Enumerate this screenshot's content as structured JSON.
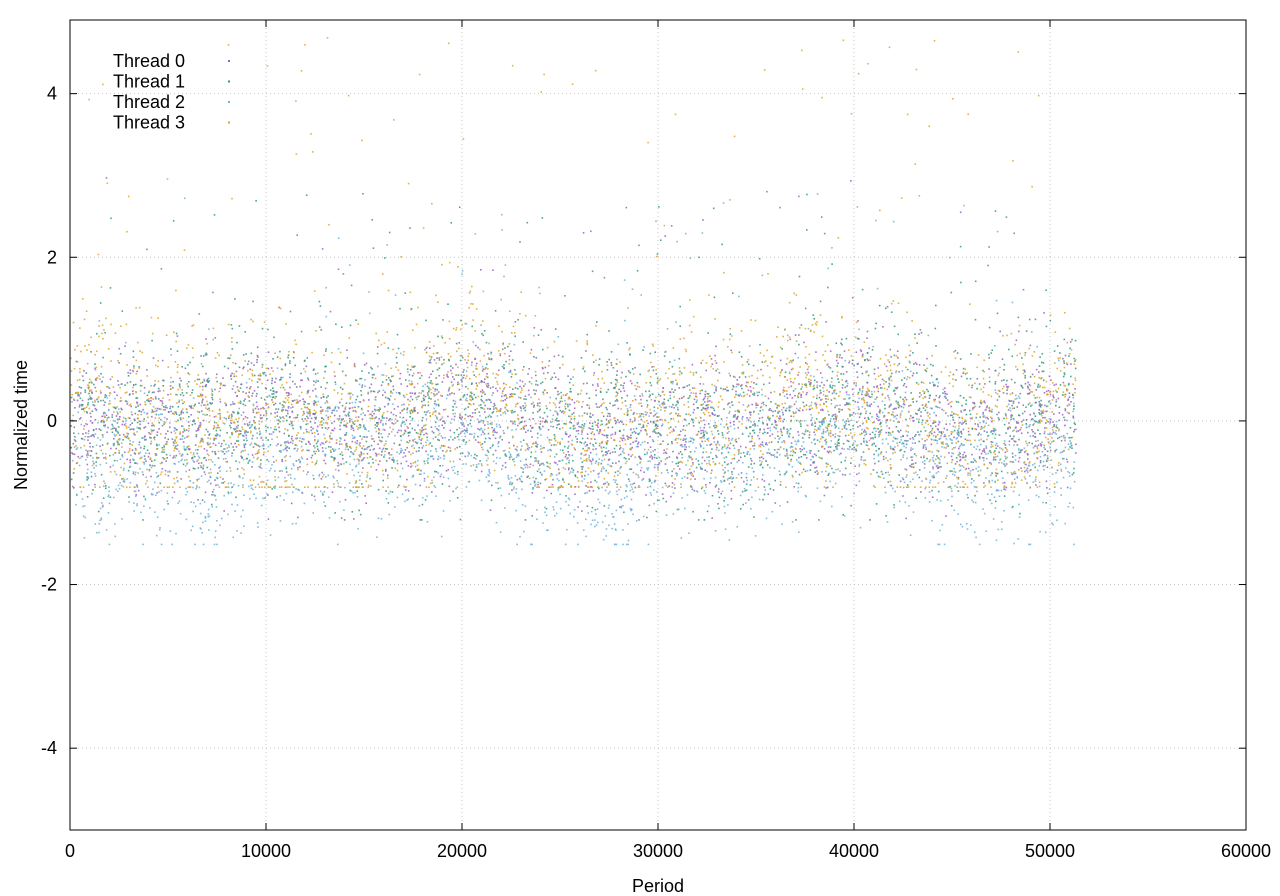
{
  "chart_data": {
    "type": "scatter",
    "title": "",
    "xlabel": "Period",
    "ylabel": "Normalized time",
    "xlim": [
      0,
      60000
    ],
    "ylim": [
      -5,
      4.9
    ],
    "xticks": [
      0,
      10000,
      20000,
      30000,
      40000,
      50000,
      60000
    ],
    "xtick_labels": [
      "0",
      "10000",
      "20000",
      "30000",
      "40000",
      "50000",
      "60000"
    ],
    "yticks": [
      -4,
      -2,
      0,
      2,
      4
    ],
    "ytick_labels": [
      "-4",
      "-2",
      "0",
      "2",
      "4"
    ],
    "grid": true,
    "legend_position": "top-left",
    "series": [
      {
        "name": "Thread 0",
        "color": "#9a5ec2",
        "x_range": [
          0,
          51300
        ],
        "typical_range": [
          -0.8,
          0.8
        ],
        "extreme_range": [
          -1.2,
          3.0
        ],
        "centerline": [
          [
            0,
            0.0
          ],
          [
            5000,
            -0.1
          ],
          [
            10000,
            0.1
          ],
          [
            15000,
            -0.1
          ],
          [
            20000,
            0.3
          ],
          [
            25000,
            0.0
          ],
          [
            30000,
            -0.2
          ],
          [
            35000,
            0.0
          ],
          [
            40000,
            0.2
          ],
          [
            45000,
            -0.1
          ],
          [
            51300,
            0.1
          ]
        ]
      },
      {
        "name": "Thread 1",
        "color": "#2e9a7a",
        "x_range": [
          0,
          51300
        ],
        "typical_range": [
          -0.7,
          1.2
        ],
        "extreme_range": [
          -1.2,
          2.8
        ],
        "centerline": [
          [
            0,
            0.1
          ],
          [
            5000,
            0.0
          ],
          [
            10000,
            0.2
          ],
          [
            15000,
            0.0
          ],
          [
            20000,
            0.2
          ],
          [
            25000,
            0.0
          ],
          [
            30000,
            0.0
          ],
          [
            35000,
            -0.2
          ],
          [
            40000,
            0.2
          ],
          [
            45000,
            0.0
          ],
          [
            51300,
            0.2
          ]
        ]
      },
      {
        "name": "Thread 2",
        "color": "#6cb4dc",
        "x_range": [
          0,
          51300
        ],
        "typical_range": [
          -1.2,
          0.6
        ],
        "extreme_range": [
          -1.5,
          2.8
        ],
        "centerline": [
          [
            0,
            -0.4
          ],
          [
            5000,
            -0.5
          ],
          [
            7000,
            -0.8
          ],
          [
            10000,
            -0.4
          ],
          [
            15000,
            -0.3
          ],
          [
            20000,
            -0.1
          ],
          [
            25000,
            -0.6
          ],
          [
            28000,
            -0.9
          ],
          [
            30000,
            -0.3
          ],
          [
            35000,
            -0.3
          ],
          [
            40000,
            -0.1
          ],
          [
            45000,
            -0.5
          ],
          [
            51300,
            -0.5
          ]
        ]
      },
      {
        "name": "Thread 3",
        "color": "#e0a424",
        "x_range": [
          0,
          51300
        ],
        "typical_range": [
          -0.6,
          1.6
        ],
        "extreme_range": [
          -0.8,
          4.8
        ],
        "centerline": [
          [
            0,
            0.3
          ],
          [
            5000,
            0.0
          ],
          [
            10000,
            0.0
          ],
          [
            15000,
            -0.2
          ],
          [
            20000,
            0.6
          ],
          [
            22000,
            0.3
          ],
          [
            25000,
            -0.1
          ],
          [
            30000,
            0.0
          ],
          [
            35000,
            0.2
          ],
          [
            40000,
            0.2
          ],
          [
            45000,
            -0.2
          ],
          [
            50000,
            0.1
          ],
          [
            51300,
            0.6
          ]
        ]
      }
    ]
  }
}
